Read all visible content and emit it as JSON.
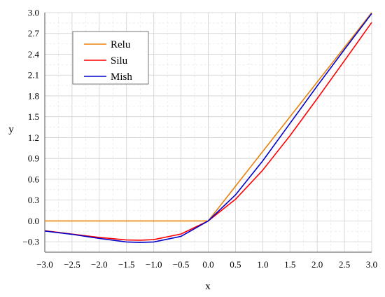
{
  "chart_data": {
    "type": "line",
    "title": "",
    "xlabel": "x",
    "ylabel": "y",
    "xlim": [
      -3.0,
      3.0
    ],
    "ylim": [
      -0.45,
      3.0
    ],
    "x_ticks": [
      "−3.0",
      "−2.5",
      "−2.0",
      "−1.5",
      "−1.0",
      "−0.5",
      "0.0",
      "0.5",
      "1.0",
      "1.5",
      "2.0",
      "2.5",
      "3.0"
    ],
    "y_ticks": [
      "−0.3",
      "0.0",
      "0.3",
      "0.6",
      "0.9",
      "1.2",
      "1.5",
      "1.8",
      "2.1",
      "2.4",
      "2.7",
      "3.0"
    ],
    "grid": true,
    "legend_position": "top-left",
    "x": [
      -3.0,
      -2.5,
      -2.0,
      -1.5,
      -1.25,
      -1.0,
      -0.5,
      0.0,
      0.5,
      1.0,
      1.5,
      2.0,
      2.5,
      3.0
    ],
    "series": [
      {
        "name": "Relu",
        "color": "#E8820C",
        "values": [
          0,
          0,
          0,
          0,
          0,
          0,
          0,
          0,
          0.5,
          1.0,
          1.5,
          2.0,
          2.5,
          3.0
        ]
      },
      {
        "name": "Silu",
        "color": "#FF0000",
        "values": [
          -0.142,
          -0.189,
          -0.238,
          -0.274,
          -0.278,
          -0.269,
          -0.189,
          0.0,
          0.311,
          0.731,
          1.227,
          1.762,
          2.307,
          2.858
        ]
      },
      {
        "name": "Mish",
        "color": "#0000CC",
        "values": [
          -0.146,
          -0.193,
          -0.252,
          -0.303,
          -0.309,
          -0.303,
          -0.222,
          0.0,
          0.375,
          0.865,
          1.404,
          1.944,
          2.469,
          2.987
        ]
      }
    ]
  }
}
